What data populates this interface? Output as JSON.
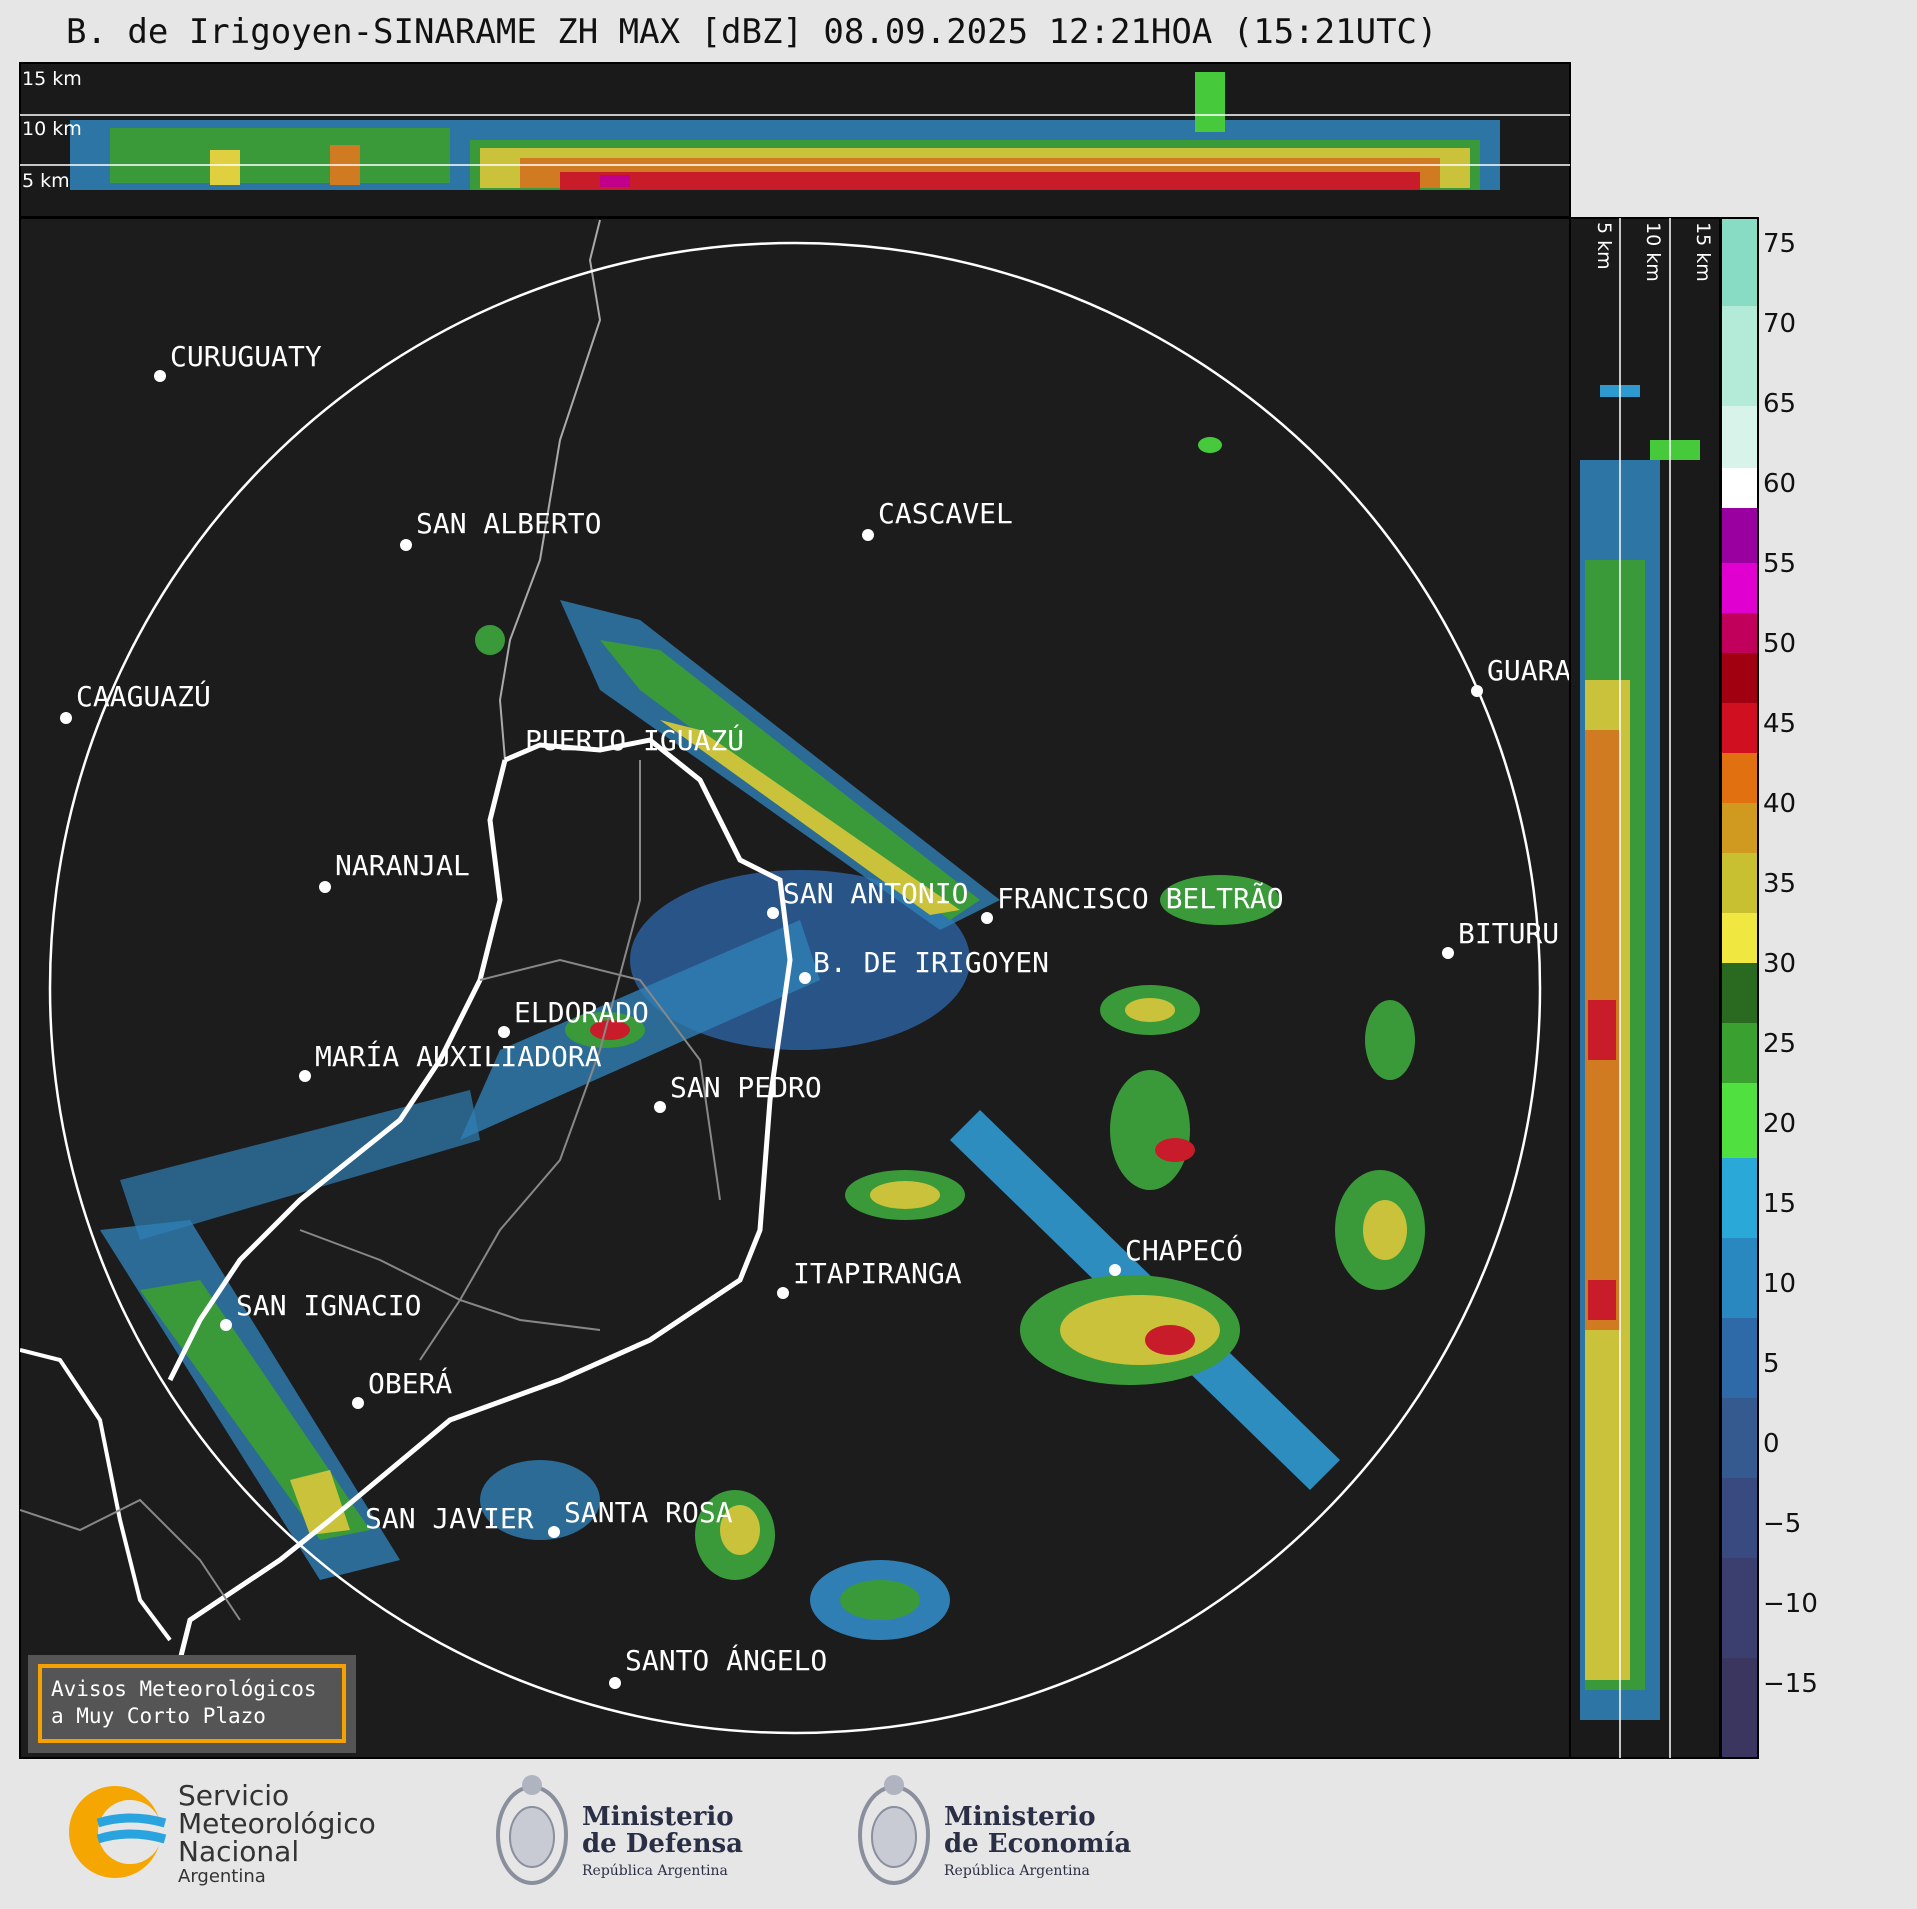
{
  "title": "B. de Irigoyen-SINARAME ZH MAX [dBZ] 08.09.2025 12:21HOA (15:21UTC)",
  "top_profile": {
    "height_labels": [
      "15 km",
      "10 km",
      "5 km"
    ]
  },
  "side_profile": {
    "height_labels": [
      "5 km",
      "10 km",
      "15 km"
    ]
  },
  "cities": [
    {
      "name": "CURUGUATY"
    },
    {
      "name": "SAN ALBERTO"
    },
    {
      "name": "CASCAVEL"
    },
    {
      "name": "CAAGUAZÚ"
    },
    {
      "name": "GUARA"
    },
    {
      "name": "PUERTO IGUAZÚ"
    },
    {
      "name": "NARANJAL"
    },
    {
      "name": "SAN ANTONIO"
    },
    {
      "name": "FRANCISCO BELTRÃO"
    },
    {
      "name": "BITURU"
    },
    {
      "name": "B. DE IRIGOYEN"
    },
    {
      "name": "ELDORADO"
    },
    {
      "name": "MARÍA AUXILIADORA"
    },
    {
      "name": "SAN PEDRO"
    },
    {
      "name": "CHAPECÓ"
    },
    {
      "name": "ITAPIRANGA"
    },
    {
      "name": "SAN IGNACIO"
    },
    {
      "name": "OBERÁ"
    },
    {
      "name": "SAN JAVIER"
    },
    {
      "name": "SANTA ROSA"
    },
    {
      "name": "SANTO ÁNGELO"
    }
  ],
  "warning_box": {
    "line1": "Avisos Meteorológicos",
    "line2": "a Muy Corto Plazo"
  },
  "colorbar": {
    "ticks": [
      "75",
      "70",
      "65",
      "60",
      "55",
      "50",
      "45",
      "40",
      "35",
      "30",
      "25",
      "20",
      "15",
      "10",
      "5",
      "0",
      "−5",
      "−10",
      "−15"
    ],
    "range": [
      -20,
      77
    ]
  },
  "footer": {
    "smn": {
      "line1": "Servicio",
      "line2": "Meteorológico",
      "line3": "Nacional",
      "line4": "Argentina"
    },
    "defensa": {
      "line1": "Ministerio",
      "line2": "de Defensa",
      "line3": "República Argentina"
    },
    "economia": {
      "line1": "Ministerio",
      "line2": "de Economía",
      "line3": "República Argentina"
    }
  }
}
